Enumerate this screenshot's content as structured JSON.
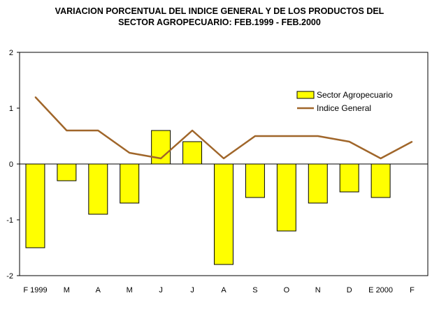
{
  "chart_data": {
    "type": "bar",
    "title": [
      "VARIACION PORCENTUAL DEL INDICE GENERAL Y DE LOS PRODUCTOS DEL",
      "SECTOR AGROPECUARIO: FEB.1999 - FEB.2000"
    ],
    "categories": [
      "F 1999",
      "M",
      "A",
      "M",
      "J",
      "J",
      "A",
      "S",
      "O",
      "N",
      "D",
      "E 2000",
      "F"
    ],
    "series": [
      {
        "name": "Sector Agropecuario",
        "type": "bar",
        "color": "#ffff00",
        "values": [
          -1.5,
          -0.3,
          -0.9,
          -0.7,
          0.6,
          0.4,
          -1.8,
          -0.6,
          -1.2,
          -0.7,
          -0.5,
          -0.6,
          null
        ]
      },
      {
        "name": "Indice General",
        "type": "line",
        "color": "#a0662a",
        "values": [
          1.2,
          0.6,
          0.6,
          0.2,
          0.1,
          0.6,
          0.1,
          0.5,
          0.5,
          0.5,
          0.4,
          0.1,
          0.4
        ]
      }
    ],
    "yticks": [
      "2",
      "1",
      "0",
      "-1",
      "-2"
    ],
    "ylim": [
      -2,
      2
    ],
    "grid": false,
    "legend_position": "top-right"
  }
}
